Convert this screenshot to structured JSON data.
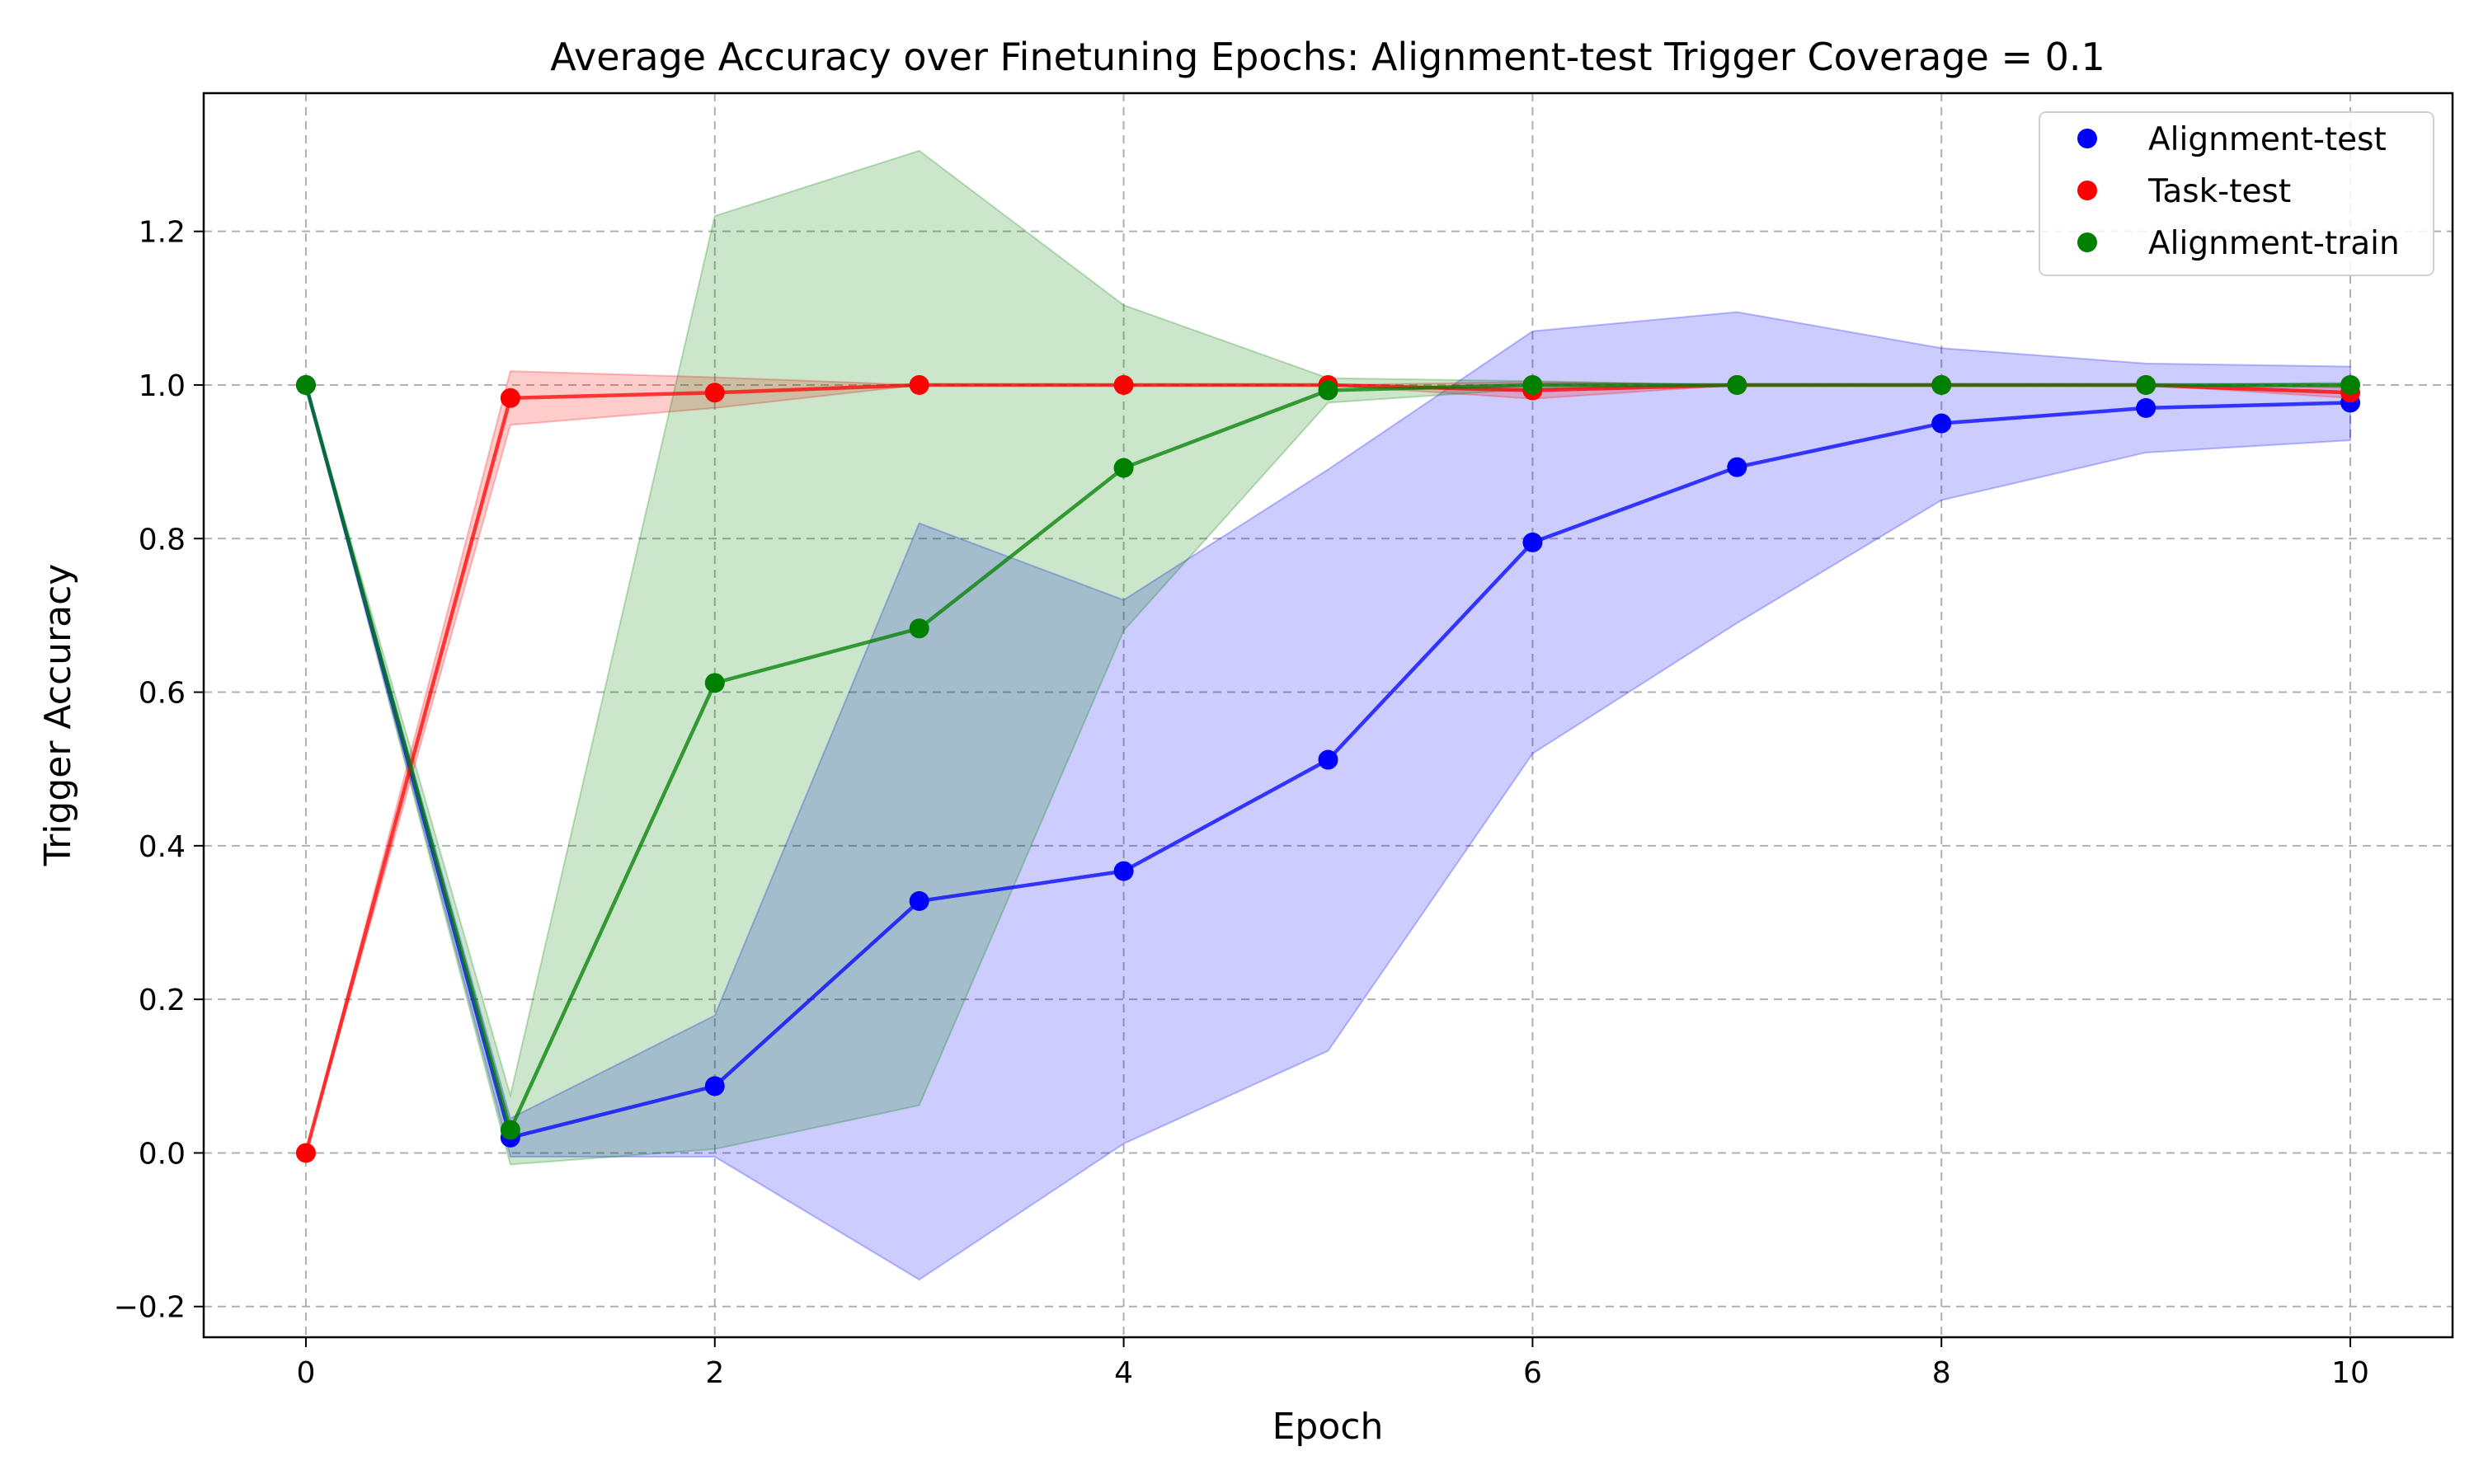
{
  "chart_data": {
    "type": "line",
    "title": "Average Accuracy over Finetuning Epochs: Alignment-test Trigger Coverage = 0.1",
    "xlabel": "Epoch",
    "ylabel": "Trigger Accuracy",
    "xlim": [
      -0.5,
      10.5
    ],
    "ylim": [
      -0.24,
      1.38
    ],
    "x_ticks": [
      0,
      2,
      4,
      6,
      8,
      10
    ],
    "y_ticks": [
      -0.2,
      0.0,
      0.2,
      0.4,
      0.6,
      0.8,
      1.0,
      1.2
    ],
    "y_tick_labels": [
      "−0.2",
      "0.0",
      "0.2",
      "0.4",
      "0.6",
      "0.8",
      "1.0",
      "1.2"
    ],
    "grid": true,
    "legend_position": "top-right",
    "x": [
      0,
      1,
      2,
      3,
      4,
      5,
      6,
      7,
      8,
      9,
      10
    ],
    "series": [
      {
        "name": "Alignment-test",
        "color": "#0000ff",
        "values": [
          1.0,
          0.02,
          0.087,
          0.328,
          0.367,
          0.512,
          0.795,
          0.893,
          0.95,
          0.97,
          0.977
        ],
        "lower": [
          1.0,
          -0.005,
          -0.005,
          -0.165,
          0.012,
          0.133,
          0.52,
          0.69,
          0.85,
          0.912,
          0.928
        ],
        "upper": [
          1.0,
          0.045,
          0.179,
          0.82,
          0.72,
          0.89,
          1.07,
          1.095,
          1.048,
          1.028,
          1.024
        ]
      },
      {
        "name": "Task-test",
        "color": "#ff0000",
        "values": [
          0.0,
          0.983,
          0.99,
          1.0,
          1.0,
          1.0,
          0.993,
          1.0,
          1.0,
          1.0,
          0.99
        ],
        "lower": [
          0.0,
          0.948,
          0.97,
          1.0,
          1.0,
          1.0,
          0.982,
          1.0,
          1.0,
          1.0,
          0.983
        ],
        "upper": [
          0.0,
          1.018,
          1.01,
          1.0,
          1.0,
          1.0,
          1.004,
          1.0,
          1.0,
          1.0,
          0.997
        ]
      },
      {
        "name": "Alignment-train",
        "color": "#008000",
        "values": [
          1.0,
          0.03,
          0.612,
          0.683,
          0.892,
          0.993,
          1.0,
          1.0,
          1.0,
          1.0,
          1.0
        ],
        "lower": [
          1.0,
          -0.015,
          0.005,
          0.062,
          0.68,
          0.977,
          0.995,
          1.0,
          1.0,
          1.0,
          0.997
        ],
        "upper": [
          1.0,
          0.075,
          1.22,
          1.305,
          1.104,
          1.009,
          1.005,
          1.0,
          1.0,
          1.0,
          1.003
        ]
      }
    ]
  }
}
